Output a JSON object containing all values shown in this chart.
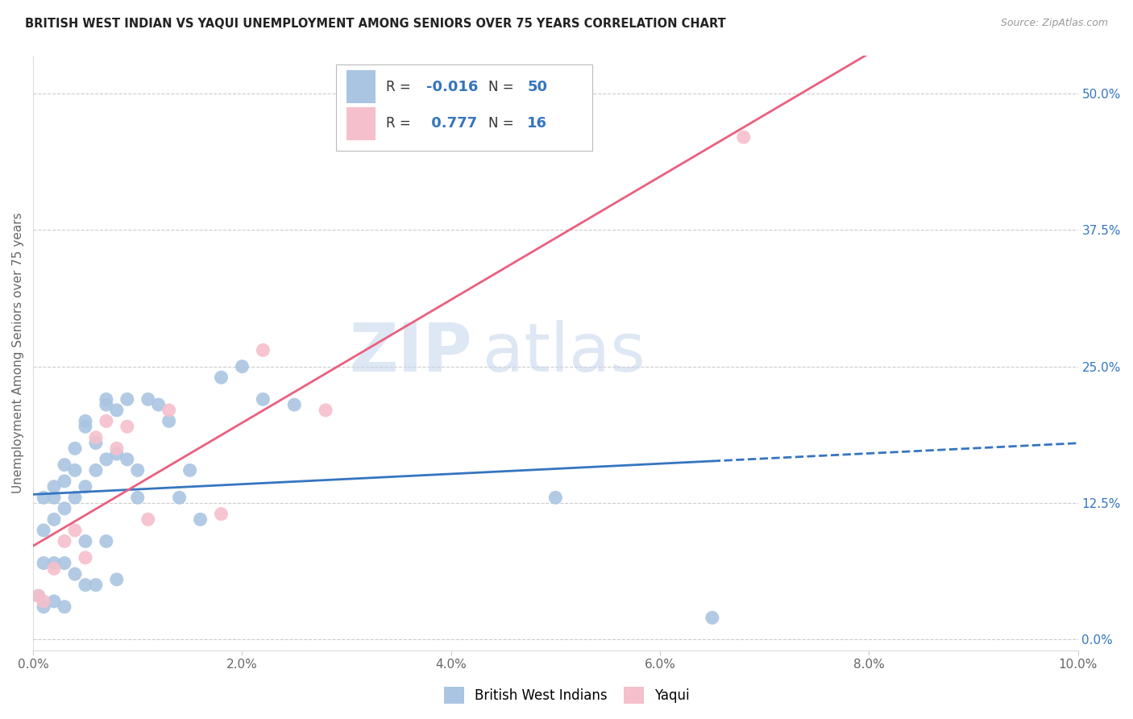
{
  "title": "BRITISH WEST INDIAN VS YAQUI UNEMPLOYMENT AMONG SENIORS OVER 75 YEARS CORRELATION CHART",
  "source": "Source: ZipAtlas.com",
  "ylabel_left": "Unemployment Among Seniors over 75 years",
  "x_min": 0.0,
  "x_max": 0.1,
  "y_min": -0.01,
  "y_max": 0.535,
  "right_yticks": [
    0.0,
    0.125,
    0.25,
    0.375,
    0.5
  ],
  "right_ytick_labels": [
    "0.0%",
    "12.5%",
    "25.0%",
    "37.5%",
    "50.0%"
  ],
  "bottom_xticks": [
    0.0,
    0.02,
    0.04,
    0.06,
    0.08,
    0.1
  ],
  "bottom_xtick_labels": [
    "0.0%",
    "2.0%",
    "4.0%",
    "6.0%",
    "8.0%",
    "10.0%"
  ],
  "bwi_R": -0.016,
  "bwi_N": 50,
  "yaqui_R": 0.777,
  "yaqui_N": 16,
  "bwi_color": "#aac5e2",
  "bwi_line_color": "#3575c0",
  "yaqui_color": "#f5bfcc",
  "yaqui_line_color": "#e86080",
  "watermark_zip": "ZIP",
  "watermark_atlas": "atlas",
  "bwi_x": [
    0.0005,
    0.001,
    0.001,
    0.001,
    0.001,
    0.002,
    0.002,
    0.002,
    0.002,
    0.002,
    0.003,
    0.003,
    0.003,
    0.003,
    0.003,
    0.004,
    0.004,
    0.004,
    0.004,
    0.005,
    0.005,
    0.005,
    0.005,
    0.005,
    0.006,
    0.006,
    0.006,
    0.007,
    0.007,
    0.007,
    0.007,
    0.008,
    0.008,
    0.008,
    0.009,
    0.009,
    0.01,
    0.01,
    0.011,
    0.012,
    0.013,
    0.014,
    0.015,
    0.016,
    0.018,
    0.02,
    0.022,
    0.025,
    0.05,
    0.065
  ],
  "bwi_y": [
    0.04,
    0.13,
    0.1,
    0.07,
    0.03,
    0.14,
    0.13,
    0.11,
    0.07,
    0.035,
    0.16,
    0.145,
    0.12,
    0.07,
    0.03,
    0.175,
    0.155,
    0.13,
    0.06,
    0.2,
    0.195,
    0.14,
    0.09,
    0.05,
    0.18,
    0.155,
    0.05,
    0.22,
    0.215,
    0.165,
    0.09,
    0.21,
    0.17,
    0.055,
    0.22,
    0.165,
    0.155,
    0.13,
    0.22,
    0.215,
    0.2,
    0.13,
    0.155,
    0.11,
    0.24,
    0.25,
    0.22,
    0.215,
    0.13,
    0.02
  ],
  "yaqui_x": [
    0.0005,
    0.001,
    0.002,
    0.003,
    0.004,
    0.005,
    0.006,
    0.007,
    0.008,
    0.009,
    0.011,
    0.013,
    0.018,
    0.022,
    0.028,
    0.068
  ],
  "yaqui_y": [
    0.04,
    0.035,
    0.065,
    0.09,
    0.1,
    0.075,
    0.185,
    0.2,
    0.175,
    0.195,
    0.11,
    0.21,
    0.115,
    0.265,
    0.21,
    0.46
  ]
}
